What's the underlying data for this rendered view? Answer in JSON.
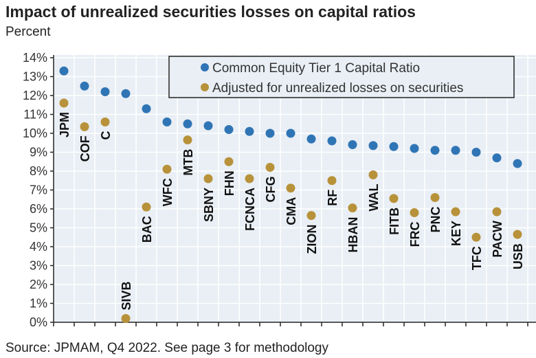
{
  "chart_data": {
    "type": "scatter",
    "title": "Impact of unrealized securities losses on capital ratios",
    "subtitle": "Percent",
    "source": "Source: JPMAM, Q4 2022. See page 3 for methodology",
    "ylim": [
      0,
      14
    ],
    "yticks": [
      "0%",
      "1%",
      "2%",
      "3%",
      "4%",
      "5%",
      "6%",
      "7%",
      "8%",
      "9%",
      "10%",
      "11%",
      "12%",
      "13%",
      "14%"
    ],
    "grid": true,
    "legend_placement": "top-right",
    "categories": [
      "JPM",
      "COF",
      "C",
      "SIVB",
      "BAC",
      "WFC",
      "MTB",
      "SBNY",
      "FHN",
      "FCNCA",
      "CFG",
      "CMA",
      "ZION",
      "RF",
      "HBAN",
      "WAL",
      "FITB",
      "FRC",
      "PNC",
      "KEY",
      "TFC",
      "PACW",
      "USB"
    ],
    "series": [
      {
        "name": "Common Equity Tier 1 Capital Ratio",
        "color": "#2f75b5",
        "values": [
          13.3,
          12.5,
          12.2,
          12.1,
          11.3,
          10.6,
          10.5,
          10.4,
          10.2,
          10.1,
          10.0,
          10.0,
          9.7,
          9.6,
          9.4,
          9.35,
          9.3,
          9.2,
          9.1,
          9.1,
          9.0,
          8.7,
          8.4
        ]
      },
      {
        "name": "Adjusted for unrealized losses on securities",
        "color": "#b8923a",
        "values": [
          11.6,
          10.35,
          10.6,
          0.2,
          6.1,
          8.1,
          9.65,
          7.6,
          8.5,
          7.6,
          8.2,
          7.1,
          5.65,
          7.5,
          6.05,
          7.8,
          6.55,
          5.8,
          6.6,
          5.85,
          4.5,
          5.85,
          4.65
        ]
      }
    ]
  }
}
